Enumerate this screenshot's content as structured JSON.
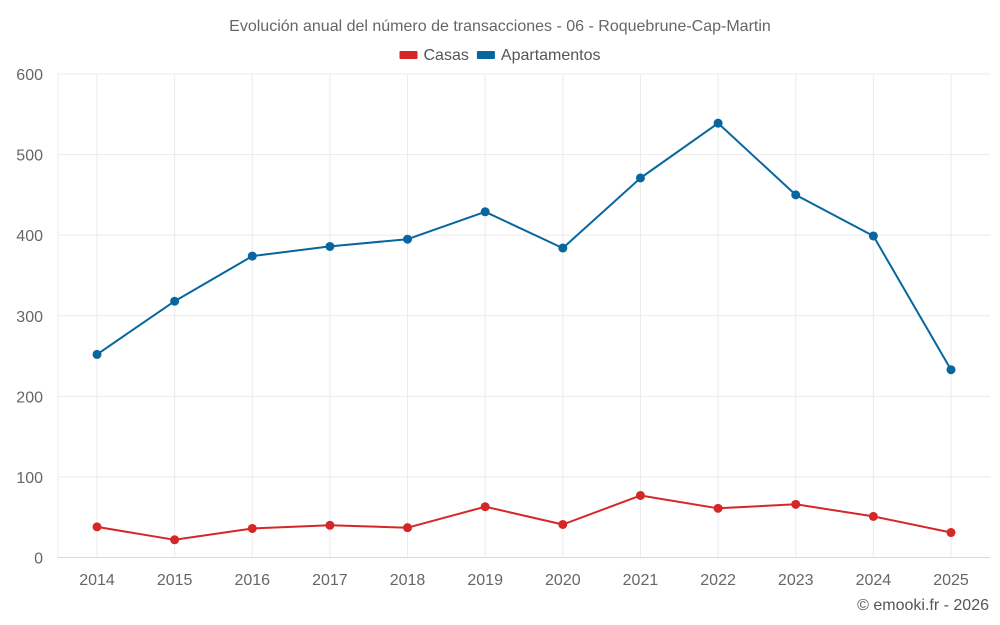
{
  "chart_data": {
    "type": "line",
    "title": "Evolución anual del número de transacciones - 06 - Roquebrune-Cap-Martin",
    "xlabel": "",
    "ylabel": "",
    "x": [
      "2014",
      "2015",
      "2016",
      "2017",
      "2018",
      "2019",
      "2020",
      "2021",
      "2022",
      "2023",
      "2024",
      "2025"
    ],
    "ylim": [
      0,
      600
    ],
    "yticks": [
      0,
      100,
      200,
      300,
      400,
      500,
      600
    ],
    "grid": true,
    "legend_position": "top-center",
    "series": [
      {
        "name": "Casas",
        "color": "#d62728",
        "values": [
          38,
          22,
          36,
          40,
          37,
          63,
          41,
          77,
          61,
          66,
          51,
          31
        ]
      },
      {
        "name": "Apartamentos",
        "color": "#08669e",
        "values": [
          252,
          318,
          374,
          386,
          395,
          429,
          384,
          471,
          539,
          450,
          399,
          233
        ]
      }
    ]
  },
  "credit": "© emooki.fr - 2026"
}
